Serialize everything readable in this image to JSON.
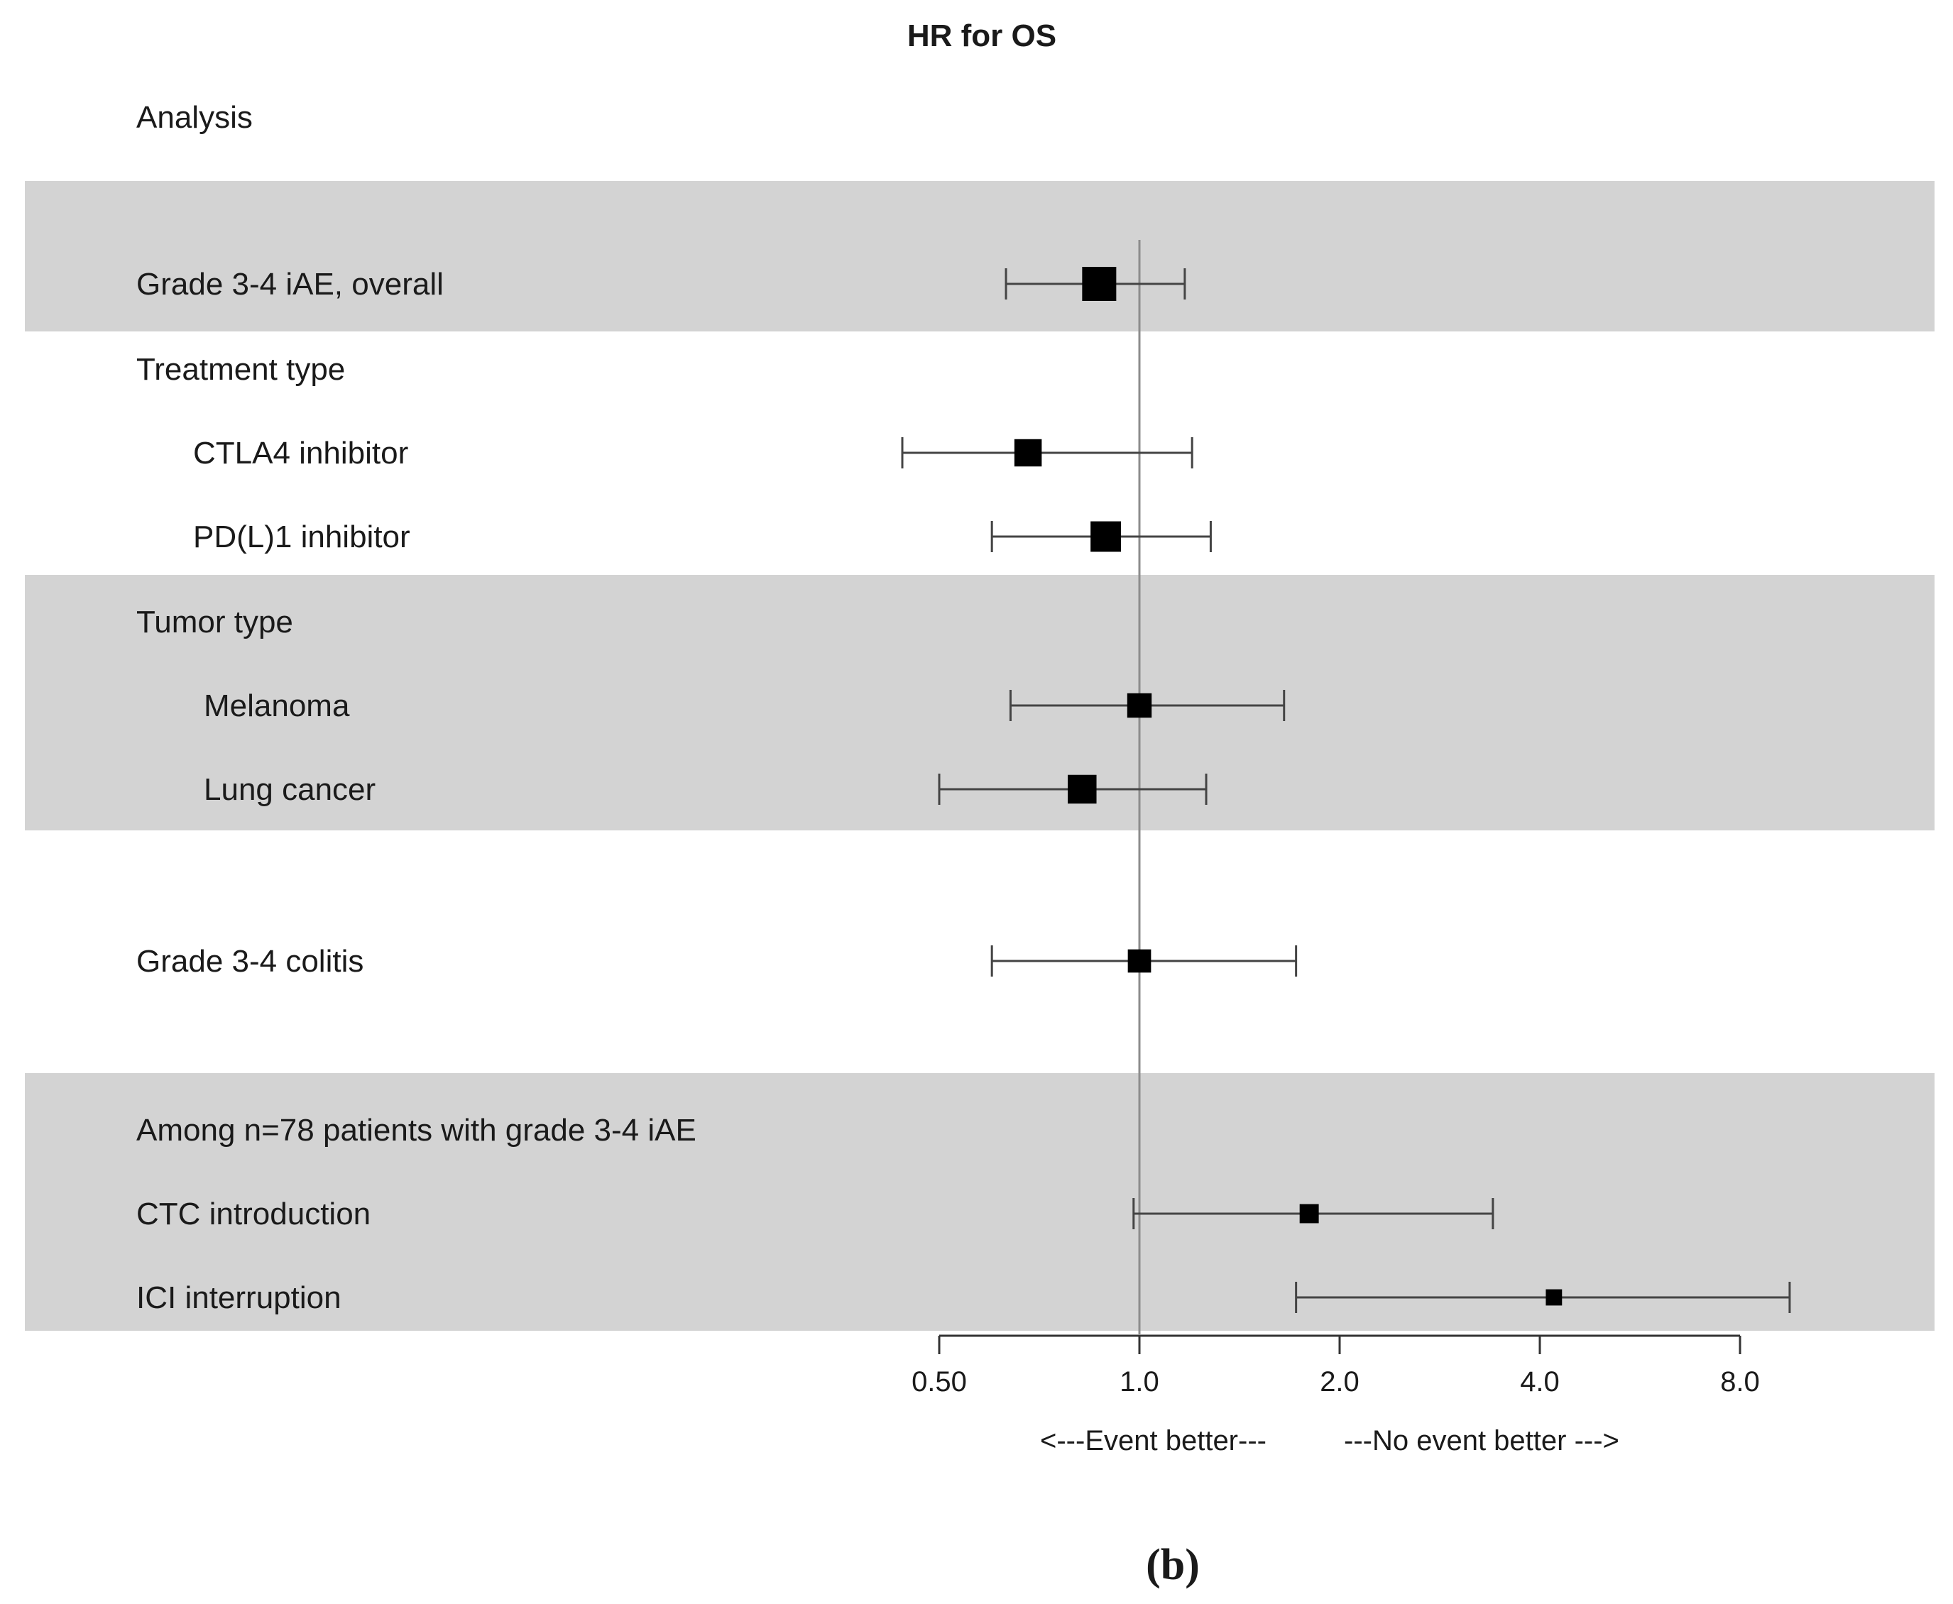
{
  "chart_data": {
    "type": "forest",
    "title": "HR for OS",
    "column_header": "Analysis",
    "x_scale": "log2",
    "xlim": [
      0.5,
      8.0
    ],
    "reference_line": 1.0,
    "ticks": [
      {
        "value": 0.5,
        "label": "0.50"
      },
      {
        "value": 1.0,
        "label": "1.0"
      },
      {
        "value": 2.0,
        "label": "2.0"
      },
      {
        "value": 4.0,
        "label": "4.0"
      },
      {
        "value": 8.0,
        "label": "8.0"
      }
    ],
    "left_arrow": "<---Event better---",
    "right_arrow": "---No event better --->",
    "rows": [
      {
        "label": "Grade 3-4 iAE, overall",
        "indent": 0,
        "hr": 0.87,
        "lo": 0.63,
        "hi": 1.17,
        "weight": 1.0
      },
      {
        "label": "Treatment type",
        "indent": 0,
        "hr": null
      },
      {
        "label": "CTLA4 inhibitor",
        "indent": 1,
        "hr": 0.68,
        "lo": 0.44,
        "hi": 1.2,
        "weight": 0.72
      },
      {
        "label": "PD(L)1 inhibitor",
        "indent": 1,
        "hr": 0.89,
        "lo": 0.6,
        "hi": 1.28,
        "weight": 0.85
      },
      {
        "label": "Tumor type",
        "indent": 0,
        "hr": null
      },
      {
        "label": "Melanoma",
        "indent": 2,
        "hr": 1.0,
        "lo": 0.64,
        "hi": 1.65,
        "weight": 0.6
      },
      {
        "label": "Lung cancer",
        "indent": 2,
        "hr": 0.82,
        "lo": 0.5,
        "hi": 1.26,
        "weight": 0.78
      },
      {
        "label": "Grade 3-4 colitis",
        "indent": 0,
        "hr": 1.0,
        "lo": 0.6,
        "hi": 1.72,
        "weight": 0.55
      },
      {
        "label": "Among n=78 patients with grade 3-4 iAE",
        "indent": 0,
        "hr": null
      },
      {
        "label": "CTC introduction",
        "indent": 0,
        "hr": 1.8,
        "lo": 0.98,
        "hi": 3.4,
        "weight": 0.38
      },
      {
        "label": "ICI interruption",
        "indent": 0,
        "hr": 4.2,
        "lo": 1.72,
        "hi": 9.5,
        "weight": 0.26
      }
    ]
  },
  "caption": "(b)"
}
